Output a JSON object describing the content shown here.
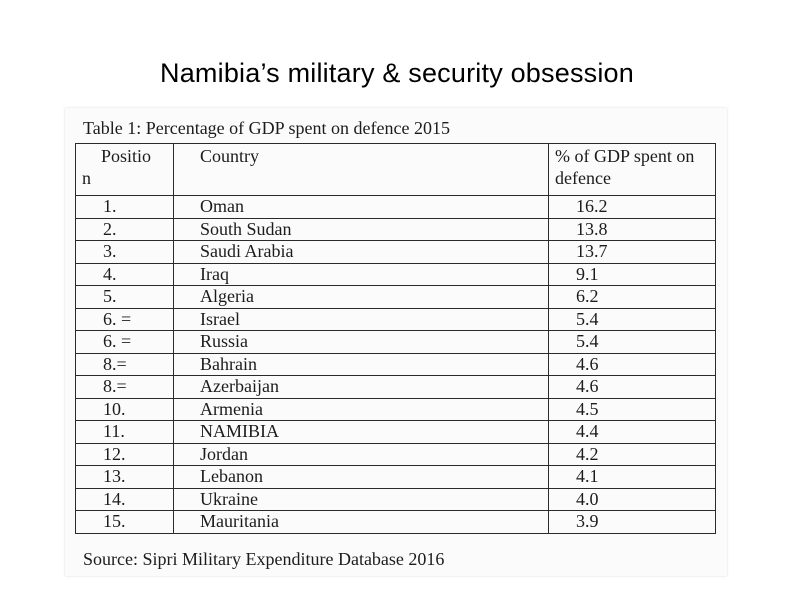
{
  "slide": {
    "title": "Namibia’s military & security obsession"
  },
  "table": {
    "caption": "Table 1: Percentage of GDP spent on defence 2015",
    "headers": {
      "position_line1": "Positio",
      "position_line2": "n",
      "country": "Country",
      "pct": "% of GDP spent on defence"
    },
    "rows": [
      {
        "position": "1.",
        "country": "Oman",
        "pct": "16.2"
      },
      {
        "position": "2.",
        "country": "South Sudan",
        "pct": "13.8"
      },
      {
        "position": "3.",
        "country": "Saudi Arabia",
        "pct": "13.7"
      },
      {
        "position": "4.",
        "country": "Iraq",
        "pct": "9.1"
      },
      {
        "position": "5.",
        "country": "Algeria",
        "pct": "6.2"
      },
      {
        "position": "6. =",
        "country": "Israel",
        "pct": "5.4"
      },
      {
        "position": "6. =",
        "country": "Russia",
        "pct": "5.4"
      },
      {
        "position": "8.=",
        "country": "Bahrain",
        "pct": "4.6"
      },
      {
        "position": "8.=",
        "country": "Azerbaijan",
        "pct": "4.6"
      },
      {
        "position": "10.",
        "country": "Armenia",
        "pct": "4.5"
      },
      {
        "position": "11.",
        "country": "NAMIBIA",
        "pct": "4.4"
      },
      {
        "position": "12.",
        "country": "Jordan",
        "pct": "4.2"
      },
      {
        "position": "13.",
        "country": "Lebanon",
        "pct": "4.1"
      },
      {
        "position": "14.",
        "country": "Ukraine",
        "pct": "4.0"
      },
      {
        "position": "15.",
        "country": "Mauritania",
        "pct": "3.9"
      }
    ],
    "source": "Source: Sipri Military Expenditure Database 2016"
  }
}
